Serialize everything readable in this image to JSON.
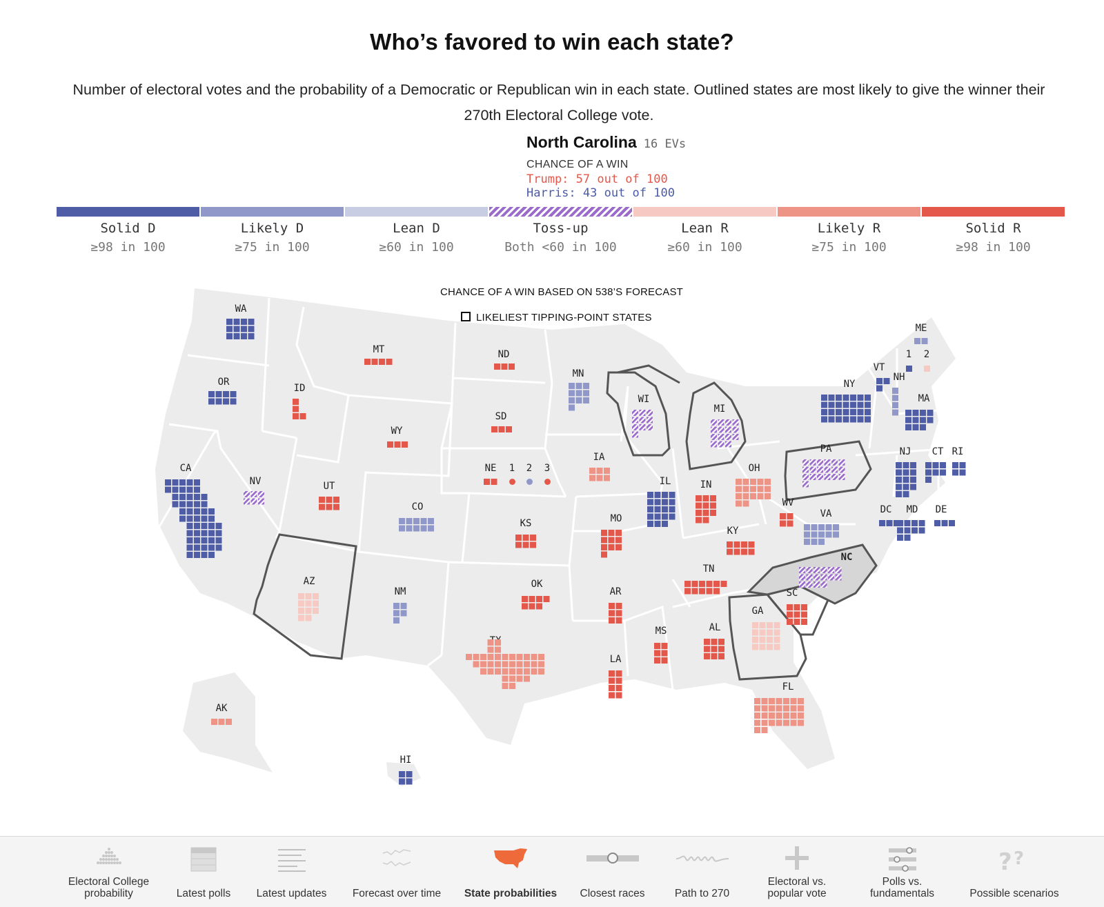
{
  "header": {
    "title": "Who’s favored to win each state?",
    "subtitle": "Number of electoral votes and the probability of a Democratic or Republican win in each state. Outlined states are most likely to give the winner their 270th Electoral College vote."
  },
  "tooltip": {
    "state": "North Carolina",
    "evs": "16 EVs",
    "caption": "CHANCE OF A WIN",
    "trump": "Trump: 57 out of 100",
    "harris": "Harris: 43 out of 100"
  },
  "legend": [
    {
      "label": "Solid D",
      "range": "≥98 in 100",
      "color": "#4e5da6"
    },
    {
      "label": "Likely D",
      "range": "≥75 in 100",
      "color": "#8f98c8"
    },
    {
      "label": "Lean D",
      "range": "≥60 in 100",
      "color": "#c9cde4"
    },
    {
      "label": "Toss-up",
      "range": "Both <60 in 100",
      "color": "#9b6bcc"
    },
    {
      "label": "Lean R",
      "range": "≥60 in 100",
      "color": "#f6cac2"
    },
    {
      "label": "Likely R",
      "range": "≥75 in 100",
      "color": "#ee9486"
    },
    {
      "label": "Solid R",
      "range": "≥98 in 100",
      "color": "#e3584b"
    }
  ],
  "map": {
    "caption": "CHANCE OF A WIN BASED ON 538’S FORECAST",
    "key_label": "LIKELIEST TIPPING-POINT STATES",
    "states": [
      {
        "abbr": "WA",
        "ev": 12,
        "cat": "solid-d"
      },
      {
        "abbr": "OR",
        "ev": 8,
        "cat": "solid-d"
      },
      {
        "abbr": "CA",
        "ev": 54,
        "cat": "solid-d"
      },
      {
        "abbr": "NV",
        "ev": 6,
        "cat": "toss-up"
      },
      {
        "abbr": "ID",
        "ev": 4,
        "cat": "solid-r"
      },
      {
        "abbr": "MT",
        "ev": 4,
        "cat": "solid-r"
      },
      {
        "abbr": "WY",
        "ev": 3,
        "cat": "solid-r"
      },
      {
        "abbr": "UT",
        "ev": 6,
        "cat": "solid-r"
      },
      {
        "abbr": "AZ",
        "ev": 11,
        "cat": "lean-r"
      },
      {
        "abbr": "CO",
        "ev": 10,
        "cat": "likely-d"
      },
      {
        "abbr": "NM",
        "ev": 5,
        "cat": "likely-d"
      },
      {
        "abbr": "ND",
        "ev": 3,
        "cat": "solid-r"
      },
      {
        "abbr": "SD",
        "ev": 3,
        "cat": "solid-r"
      },
      {
        "abbr": "NE",
        "ev": 2,
        "cat": "solid-r"
      },
      {
        "abbr": "1",
        "ev": 1,
        "cat": "solid-r"
      },
      {
        "abbr": "2",
        "ev": 1,
        "cat": "likely-d"
      },
      {
        "abbr": "3",
        "ev": 1,
        "cat": "solid-r"
      },
      {
        "abbr": "KS",
        "ev": 6,
        "cat": "solid-r"
      },
      {
        "abbr": "OK",
        "ev": 7,
        "cat": "solid-r"
      },
      {
        "abbr": "TX",
        "ev": 40,
        "cat": "likely-r"
      },
      {
        "abbr": "MN",
        "ev": 10,
        "cat": "likely-d"
      },
      {
        "abbr": "IA",
        "ev": 6,
        "cat": "likely-r"
      },
      {
        "abbr": "MO",
        "ev": 10,
        "cat": "solid-r"
      },
      {
        "abbr": "AR",
        "ev": 6,
        "cat": "solid-r"
      },
      {
        "abbr": "LA",
        "ev": 8,
        "cat": "solid-r"
      },
      {
        "abbr": "WI",
        "ev": 10,
        "cat": "toss-up"
      },
      {
        "abbr": "IL",
        "ev": 19,
        "cat": "solid-d"
      },
      {
        "abbr": "MI",
        "ev": 15,
        "cat": "toss-up"
      },
      {
        "abbr": "IN",
        "ev": 11,
        "cat": "solid-r"
      },
      {
        "abbr": "OH",
        "ev": 17,
        "cat": "likely-r"
      },
      {
        "abbr": "KY",
        "ev": 8,
        "cat": "solid-r"
      },
      {
        "abbr": "TN",
        "ev": 11,
        "cat": "solid-r"
      },
      {
        "abbr": "MS",
        "ev": 6,
        "cat": "solid-r"
      },
      {
        "abbr": "AL",
        "ev": 9,
        "cat": "solid-r"
      },
      {
        "abbr": "GA",
        "ev": 16,
        "cat": "lean-r"
      },
      {
        "abbr": "FL",
        "ev": 30,
        "cat": "likely-r"
      },
      {
        "abbr": "SC",
        "ev": 9,
        "cat": "solid-r"
      },
      {
        "abbr": "NC",
        "ev": 16,
        "cat": "toss-up"
      },
      {
        "abbr": "VA",
        "ev": 13,
        "cat": "likely-d"
      },
      {
        "abbr": "WV",
        "ev": 4,
        "cat": "solid-r"
      },
      {
        "abbr": "PA",
        "ev": 19,
        "cat": "toss-up"
      },
      {
        "abbr": "NY",
        "ev": 28,
        "cat": "solid-d"
      },
      {
        "abbr": "VT",
        "ev": 3,
        "cat": "solid-d"
      },
      {
        "abbr": "NH",
        "ev": 4,
        "cat": "likely-d"
      },
      {
        "abbr": "ME",
        "ev": 2,
        "cat": "likely-d"
      },
      {
        "abbr": "1",
        "ev": 1,
        "cat": "solid-d"
      },
      {
        "abbr": "2",
        "ev": 1,
        "cat": "lean-r"
      },
      {
        "abbr": "MA",
        "ev": 11,
        "cat": "solid-d"
      },
      {
        "abbr": "NJ",
        "ev": 14,
        "cat": "solid-d"
      },
      {
        "abbr": "CT",
        "ev": 7,
        "cat": "solid-d"
      },
      {
        "abbr": "RI",
        "ev": 4,
        "cat": "solid-d"
      },
      {
        "abbr": "DC",
        "ev": 3,
        "cat": "solid-d"
      },
      {
        "abbr": "MD",
        "ev": 10,
        "cat": "solid-d"
      },
      {
        "abbr": "DE",
        "ev": 3,
        "cat": "solid-d"
      },
      {
        "abbr": "AK",
        "ev": 3,
        "cat": "likely-r"
      },
      {
        "abbr": "HI",
        "ev": 4,
        "cat": "solid-d"
      }
    ]
  },
  "nav": [
    {
      "label": "Electoral College probability",
      "icon": "dot-histogram-icon",
      "active": false
    },
    {
      "label": "Latest polls",
      "icon": "table-icon",
      "active": false
    },
    {
      "label": "Latest updates",
      "icon": "lines-icon",
      "active": false
    },
    {
      "label": "Forecast over time",
      "icon": "line-chart-icon",
      "active": false
    },
    {
      "label": "State probabilities",
      "icon": "us-map-icon",
      "active": true
    },
    {
      "label": "Closest races",
      "icon": "slider-icon",
      "active": false
    },
    {
      "label": "Path to 270",
      "icon": "squiggle-icon",
      "active": false
    },
    {
      "label": "Electoral vs. popular vote",
      "icon": "plus-icon",
      "active": false
    },
    {
      "label": "Polls vs. fundamentals",
      "icon": "sliders-icon",
      "active": false
    },
    {
      "label": "Possible scenarios",
      "icon": "question-icon",
      "active": false
    }
  ],
  "colors": {
    "solid_d": "#4e5da6",
    "likely_d": "#8f98c8",
    "lean_d": "#c9cde4",
    "toss_up": "#9b6bcc",
    "lean_r": "#f6cac2",
    "likely_r": "#ee9486",
    "solid_r": "#e3584b",
    "map_fill": "#ececec",
    "accent_orange": "#ef6a3a"
  }
}
